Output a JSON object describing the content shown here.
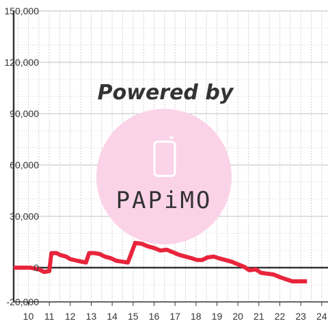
{
  "chart_data": {
    "type": "line",
    "title": "",
    "xlabel": "",
    "ylabel": "",
    "xlim": [
      9.3,
      24.3
    ],
    "ylim": [
      -20000,
      150000
    ],
    "x_ticks": [
      10,
      11,
      12,
      13,
      14,
      15,
      16,
      17,
      18,
      19,
      20,
      21,
      22,
      23,
      24
    ],
    "x_tick_labels": [
      "10",
      "11",
      "12",
      "13",
      "14",
      "15",
      "16",
      "17",
      "18",
      "19",
      "20",
      "21",
      "22",
      "23",
      "24"
    ],
    "y_ticks": [
      -20000,
      0,
      30000,
      60000,
      90000,
      120000,
      150000
    ],
    "y_tick_labels": [
      "-20,000",
      "0",
      "30,000",
      "60,000",
      "90,000",
      "120,000",
      "150,000"
    ],
    "grid": true,
    "series": [
      {
        "color": "#e8253b",
        "points": [
          [
            9.3,
            0
          ],
          [
            10.1,
            0
          ],
          [
            10.5,
            -1000
          ],
          [
            10.75,
            -2500
          ],
          [
            11.0,
            -2000
          ],
          [
            11.1,
            8500
          ],
          [
            11.35,
            8500
          ],
          [
            11.5,
            7500
          ],
          [
            11.8,
            6500
          ],
          [
            12.0,
            5000
          ],
          [
            12.35,
            4000
          ],
          [
            12.75,
            3000
          ],
          [
            12.9,
            8500
          ],
          [
            13.15,
            8500
          ],
          [
            13.4,
            8000
          ],
          [
            13.65,
            6500
          ],
          [
            13.95,
            5500
          ],
          [
            14.2,
            4000
          ],
          [
            14.5,
            3500
          ],
          [
            14.75,
            3000
          ],
          [
            15.1,
            14500
          ],
          [
            15.4,
            14000
          ],
          [
            15.7,
            12500
          ],
          [
            16.0,
            11500
          ],
          [
            16.3,
            10000
          ],
          [
            16.6,
            10500
          ],
          [
            16.9,
            9000
          ],
          [
            17.2,
            7500
          ],
          [
            17.5,
            6500
          ],
          [
            17.8,
            5500
          ],
          [
            18.05,
            4500
          ],
          [
            18.3,
            4500
          ],
          [
            18.55,
            6000
          ],
          [
            18.85,
            6500
          ],
          [
            19.1,
            5500
          ],
          [
            19.4,
            4500
          ],
          [
            19.7,
            3500
          ],
          [
            20.0,
            2000
          ],
          [
            20.3,
            500
          ],
          [
            20.55,
            -1500
          ],
          [
            20.85,
            -1000
          ],
          [
            21.1,
            -3000
          ],
          [
            21.4,
            -3500
          ],
          [
            21.7,
            -4000
          ],
          [
            22.0,
            -5500
          ],
          [
            22.35,
            -7000
          ],
          [
            22.6,
            -8000
          ],
          [
            22.9,
            -8000
          ],
          [
            23.2,
            -8000
          ],
          [
            23.3,
            -8000
          ]
        ]
      }
    ]
  },
  "watermark": {
    "text": "Powered by",
    "logo_text": "PAPiMO",
    "color": "#fbd3e8"
  }
}
